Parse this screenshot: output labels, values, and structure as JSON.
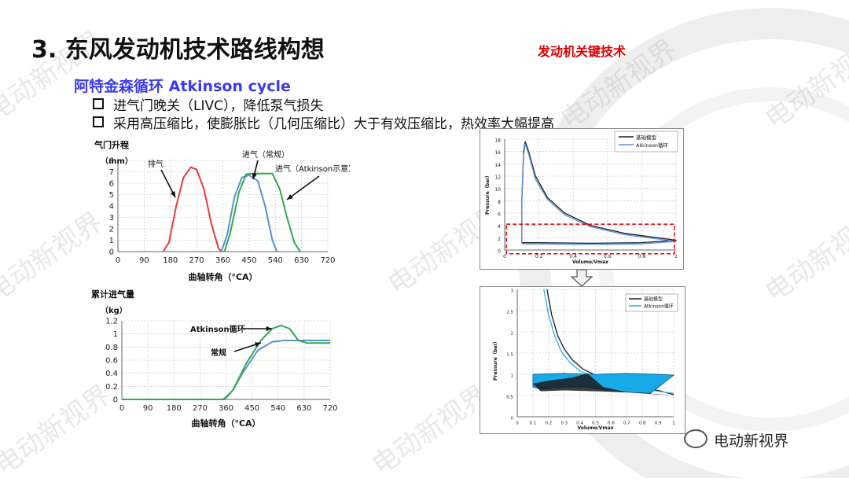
{
  "slide": {
    "title": "3. 东风发动机技术路线构想",
    "key_tech_label": "发动机关键技术",
    "subtitle": "阿特金森循环 Atkinson cycle",
    "bullets": [
      "进气门晚关（LIVC），降低泵气损失",
      "采用高压缩比，使膨胀比（几何压缩比）大于有效压缩比，热效率大幅提高"
    ],
    "watermark": "电动新视界",
    "footer_brand": "电动新视界"
  },
  "colors": {
    "red": "#e8383a",
    "blue": "#5b8fd0",
    "green": "#2eaa4e",
    "black": "#1a1a2e",
    "cyan": "#2ab0e6",
    "dash_red": "#e00000"
  },
  "chart_data": [
    {
      "type": "line",
      "title": "气门升程",
      "ylabel": "（mm）",
      "xlabel": "曲轴转角（°CA）",
      "xlim": [
        0,
        720
      ],
      "ylim": [
        0,
        8
      ],
      "xticks": [
        0,
        90,
        180,
        270,
        360,
        450,
        540,
        630,
        720
      ],
      "yticks": [
        0,
        1,
        2,
        3,
        4,
        5,
        6,
        7,
        8
      ],
      "grid": true,
      "series": [
        {
          "name": "排气",
          "color": "#e8383a",
          "points": [
            [
              155,
              0
            ],
            [
              175,
              0.8
            ],
            [
              200,
              4.0
            ],
            [
              225,
              6.5
            ],
            [
              250,
              7.4
            ],
            [
              270,
              7.2
            ],
            [
              295,
              5.5
            ],
            [
              320,
              2.5
            ],
            [
              345,
              0.3
            ],
            [
              355,
              0
            ]
          ]
        },
        {
          "name": "进气（常规）",
          "color": "#5b8fd0",
          "points": [
            [
              355,
              0
            ],
            [
              375,
              1.5
            ],
            [
              400,
              4.8
            ],
            [
              425,
              6.5
            ],
            [
              450,
              6.7
            ],
            [
              480,
              6.2
            ],
            [
              505,
              4.0
            ],
            [
              530,
              1.0
            ],
            [
              545,
              0
            ]
          ]
        },
        {
          "name": "进气（Atkinson示意）",
          "color": "#2eaa4e",
          "points": [
            [
              365,
              0
            ],
            [
              385,
              1.6
            ],
            [
              415,
              5.2
            ],
            [
              440,
              6.8
            ],
            [
              470,
              6.85
            ],
            [
              530,
              6.85
            ],
            [
              555,
              5.5
            ],
            [
              580,
              3.0
            ],
            [
              605,
              0.8
            ],
            [
              625,
              0
            ]
          ]
        }
      ],
      "annotations": [
        "排气",
        "进气（常规）",
        "进气（Atkinson示意）"
      ]
    },
    {
      "type": "line",
      "title": "累计进气量",
      "ylabel": "（kg）",
      "xlabel": "曲轴转角（°CA）",
      "xlim": [
        0,
        720
      ],
      "ylim": [
        0,
        1.2
      ],
      "xticks": [
        0,
        90,
        180,
        270,
        360,
        450,
        540,
        630,
        720
      ],
      "yticks": [
        0,
        0.2,
        0.4,
        0.6,
        0.8,
        1,
        1.2
      ],
      "grid": true,
      "series": [
        {
          "name": "常规",
          "color": "#5b8fd0",
          "points": [
            [
              0,
              0
            ],
            [
              350,
              0
            ],
            [
              380,
              0.12
            ],
            [
              420,
              0.42
            ],
            [
              470,
              0.75
            ],
            [
              520,
              0.88
            ],
            [
              560,
              0.9
            ],
            [
              720,
              0.9
            ]
          ]
        },
        {
          "name": "Atkinson循环",
          "color": "#2eaa4e",
          "points": [
            [
              0,
              0
            ],
            [
              355,
              0
            ],
            [
              385,
              0.15
            ],
            [
              430,
              0.55
            ],
            [
              480,
              0.9
            ],
            [
              520,
              1.08
            ],
            [
              550,
              1.13
            ],
            [
              580,
              1.08
            ],
            [
              610,
              0.9
            ],
            [
              640,
              0.86
            ],
            [
              720,
              0.86
            ]
          ]
        }
      ],
      "annotations": [
        "Atkinson循环",
        "常规"
      ]
    },
    {
      "type": "line",
      "ylabel": "Pressure（bar）",
      "xlabel": "Volume/Vmax",
      "xlim": [
        0,
        1
      ],
      "ylim": [
        0,
        18
      ],
      "xticks": [
        0,
        0.2,
        0.4,
        0.6,
        0.8,
        1
      ],
      "yticks": [
        0,
        2,
        4,
        6,
        8,
        10,
        12,
        14,
        16,
        18
      ],
      "grid": true,
      "legend": "top-right",
      "series": [
        {
          "name": "基础模型",
          "color": "#1a1a2e",
          "points": [
            [
              0.1,
              1.2
            ],
            [
              0.1,
              8
            ],
            [
              0.11,
              16
            ],
            [
              0.12,
              17.6
            ],
            [
              0.14,
              16
            ],
            [
              0.18,
              12
            ],
            [
              0.25,
              8.5
            ],
            [
              0.35,
              6
            ],
            [
              0.5,
              4
            ],
            [
              0.7,
              2.7
            ],
            [
              1.0,
              1.6
            ],
            [
              0.8,
              1.2
            ],
            [
              0.5,
              1.1
            ],
            [
              0.2,
              1.2
            ],
            [
              0.1,
              1.2
            ]
          ]
        },
        {
          "name": "Atkinson循环",
          "color": "#5b8fd0",
          "points": [
            [
              0.1,
              1.0
            ],
            [
              0.1,
              7.5
            ],
            [
              0.11,
              15.5
            ],
            [
              0.12,
              17.2
            ],
            [
              0.14,
              15.6
            ],
            [
              0.18,
              11.5
            ],
            [
              0.25,
              8.2
            ],
            [
              0.35,
              5.7
            ],
            [
              0.5,
              3.8
            ],
            [
              0.7,
              2.5
            ],
            [
              1.0,
              1.4
            ],
            [
              0.8,
              1.0
            ],
            [
              0.5,
              0.9
            ],
            [
              0.2,
              1.0
            ],
            [
              0.1,
              1.0
            ]
          ]
        }
      ]
    },
    {
      "type": "line",
      "ylabel": "Pressure（bar）",
      "xlabel": "Volume/Vmax",
      "xlim": [
        0,
        1
      ],
      "ylim": [
        0,
        3
      ],
      "xticks": [
        0,
        0.1,
        0.2,
        0.3,
        0.4,
        0.5,
        0.6,
        0.7,
        0.8,
        0.9,
        1
      ],
      "yticks": [
        0,
        0.5,
        1,
        1.5,
        2,
        2.5,
        3
      ],
      "grid": true,
      "legend": "top-right",
      "series": [
        {
          "name": "基础模型",
          "color": "#1a1a2e",
          "points": [
            [
              0.19,
              3
            ],
            [
              0.22,
              2.4
            ],
            [
              0.26,
              1.9
            ],
            [
              0.3,
              1.6
            ],
            [
              0.35,
              1.35
            ],
            [
              0.42,
              1.12
            ],
            [
              0.5,
              0.98
            ],
            [
              0.6,
              0.88
            ],
            [
              0.7,
              0.78
            ],
            [
              0.8,
              0.7
            ],
            [
              0.9,
              0.62
            ],
            [
              1.0,
              0.52
            ]
          ]
        },
        {
          "name": "Atkinson循环",
          "color": "#2ab0e6",
          "points": [
            [
              0.17,
              3
            ],
            [
              0.2,
              2.4
            ],
            [
              0.24,
              1.9
            ],
            [
              0.28,
              1.55
            ],
            [
              0.33,
              1.3
            ],
            [
              0.4,
              1.08
            ],
            [
              0.48,
              0.96
            ],
            [
              0.58,
              0.86
            ],
            [
              0.68,
              0.76
            ],
            [
              0.78,
              0.68
            ],
            [
              0.9,
              0.6
            ],
            [
              1.0,
              0.55
            ]
          ]
        }
      ]
    }
  ]
}
